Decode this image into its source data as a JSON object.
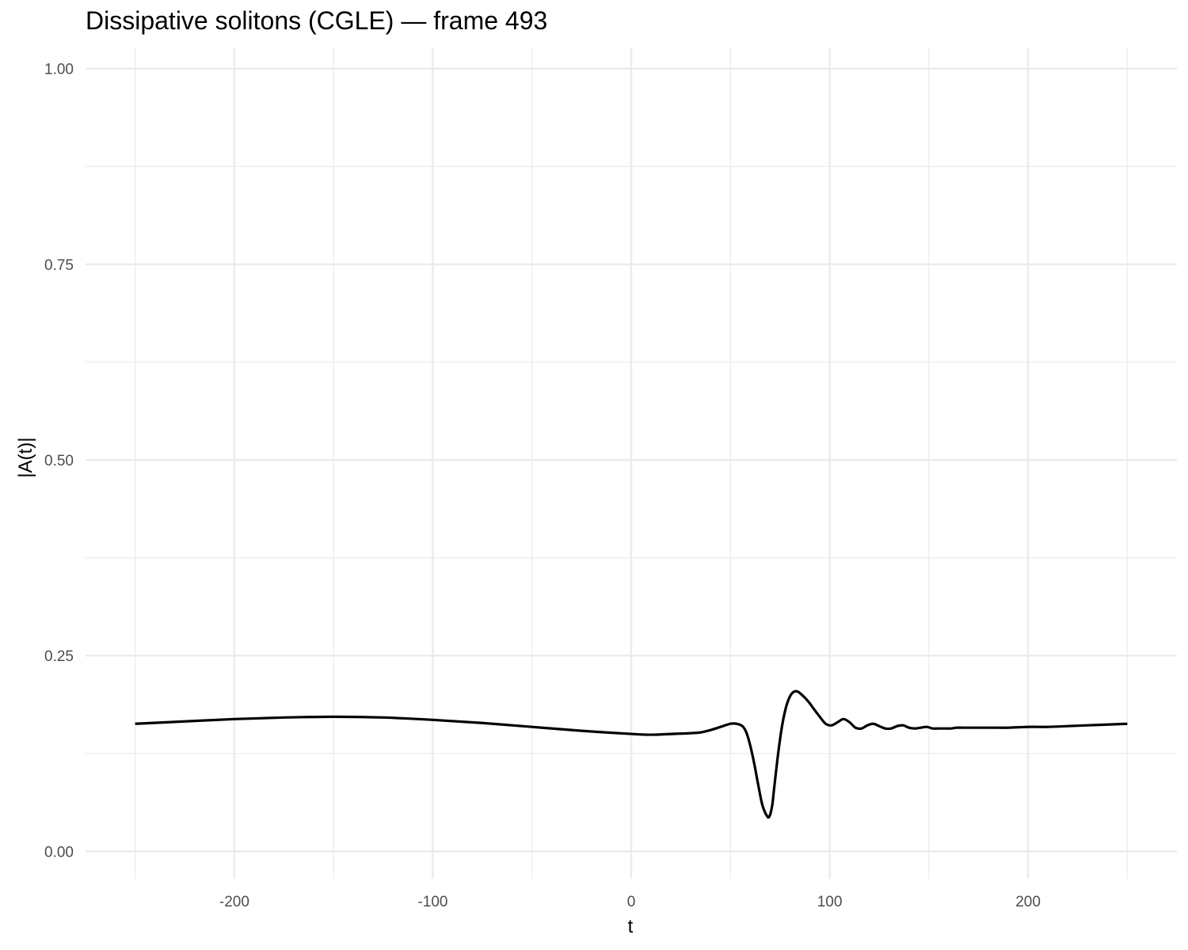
{
  "chart_data": {
    "type": "line",
    "title": "Dissipative solitons (CGLE) — frame 493",
    "xlabel": "t",
    "ylabel": "|A(t)|",
    "xlim": [
      -275,
      275
    ],
    "ylim": [
      -0.035,
      1.027
    ],
    "x_ticks": [
      -200,
      -100,
      0,
      100,
      200
    ],
    "x_tick_labels": [
      "-200",
      "-100",
      "0",
      "100",
      "200"
    ],
    "y_ticks": [
      0,
      0.25,
      0.5,
      0.75,
      1.0
    ],
    "y_tick_labels": [
      "0.00",
      "0.25",
      "0.50",
      "0.75",
      "1.00"
    ],
    "grid": true,
    "legend": "none",
    "line_color": "#000000",
    "series": [
      {
        "x": [
          -250,
          -225,
          -200,
          -175,
          -150,
          -125,
          -100,
          -75,
          -50,
          -25,
          0,
          10,
          20,
          30,
          35,
          40,
          45,
          50,
          53,
          56,
          58,
          60,
          62,
          64,
          66,
          68,
          69.5,
          71,
          72,
          74,
          76,
          78,
          80,
          82,
          84,
          86,
          88,
          90,
          92,
          95,
          98,
          101,
          104,
          107,
          110,
          113,
          116,
          119,
          122,
          125,
          128,
          131,
          134,
          137,
          140,
          143,
          146,
          149,
          152,
          155,
          158,
          161,
          164,
          167,
          170,
          175,
          180,
          185,
          190,
          200,
          210,
          220,
          230,
          240,
          250
        ],
        "y": [
          0.163,
          0.166,
          0.169,
          0.171,
          0.172,
          0.171,
          0.168,
          0.164,
          0.159,
          0.154,
          0.15,
          0.149,
          0.15,
          0.151,
          0.152,
          0.155,
          0.159,
          0.163,
          0.163,
          0.16,
          0.152,
          0.135,
          0.112,
          0.085,
          0.06,
          0.047,
          0.044,
          0.058,
          0.08,
          0.124,
          0.16,
          0.184,
          0.198,
          0.204,
          0.204,
          0.2,
          0.195,
          0.189,
          0.182,
          0.172,
          0.163,
          0.161,
          0.165,
          0.169,
          0.165,
          0.158,
          0.157,
          0.161,
          0.163,
          0.16,
          0.157,
          0.157,
          0.16,
          0.161,
          0.158,
          0.157,
          0.158,
          0.159,
          0.157,
          0.157,
          0.157,
          0.157,
          0.158,
          0.158,
          0.158,
          0.158,
          0.158,
          0.158,
          0.158,
          0.159,
          0.159,
          0.16,
          0.161,
          0.162,
          0.163
        ]
      }
    ]
  }
}
